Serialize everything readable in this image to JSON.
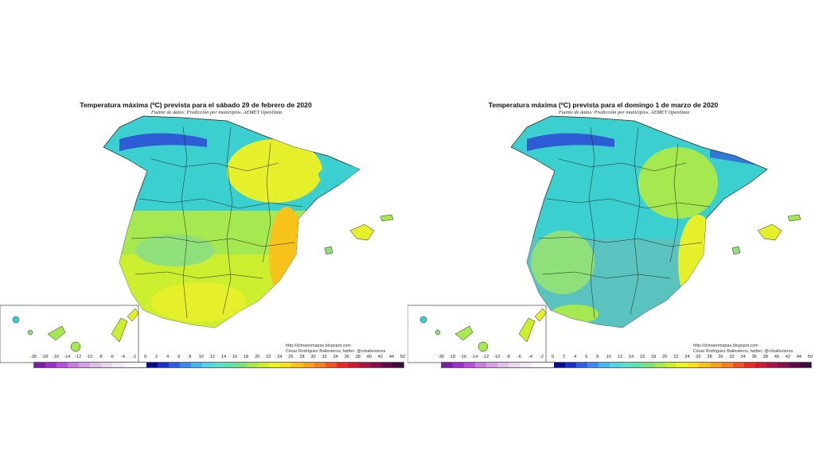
{
  "panels": [
    {
      "title": "Temperatura máxima (ºC) prevista para el sábado 29 de febrero de 2020",
      "source": "Fuente de datos: Predicción por municipios. AEMET OpenData",
      "credit_url": "http://climaenmapas.blogspot.com",
      "credit_author": "César Rodríguez Ballesteros, twitter: @crballesteros"
    },
    {
      "title": "Temperatura máxima (ºC) prevista para el domingo 1 de marzo de 2020",
      "source": "Fuente de datos: Predicción por municipios. AEMET OpenData",
      "credit_url": "http://climaenmapas.blogspot.com",
      "credit_author": "César Rodríguez Ballesteros, twitter: @crballesteros"
    }
  ],
  "scale_labels": [
    "-30",
    "-18",
    "-16",
    "-14",
    "-12",
    "-10",
    "-8",
    "-6",
    "-4",
    "-2",
    "0",
    "2",
    "4",
    "6",
    "8",
    "10",
    "12",
    "14",
    "16",
    "18",
    "20",
    "22",
    "24",
    "26",
    "28",
    "30",
    "32",
    "34",
    "36",
    "38",
    "40",
    "42",
    "44",
    "50"
  ],
  "scale_colors": [
    "#7a1fa2",
    "#9b30c7",
    "#b84fd8",
    "#c97de0",
    "#d6a1e6",
    "#e0bfe8",
    "#ead7ef",
    "#f2e9f4",
    "#fbf6fb",
    "#ffffff",
    "#0a0a8c",
    "#1c2fc4",
    "#2f5ee0",
    "#3d8ae8",
    "#4ab6ee",
    "#55d3e8",
    "#5ae0cf",
    "#62e2a8",
    "#7ce27c",
    "#a6e84f",
    "#cbef2e",
    "#eef51d",
    "#fbe019",
    "#f9c21a",
    "#f7a21c",
    "#f3811f",
    "#ee5522",
    "#e42b25",
    "#cc1a33",
    "#a81443",
    "#85104c",
    "#600c4a",
    "#3c0a3c"
  ],
  "map_colors": {
    "cold_north": "#2a3fd6",
    "cool": "#3ccfcf",
    "mild": "#8fe07a",
    "warm": "#e6f02a",
    "hot": "#f7c21a",
    "sea": "#ffffff"
  }
}
